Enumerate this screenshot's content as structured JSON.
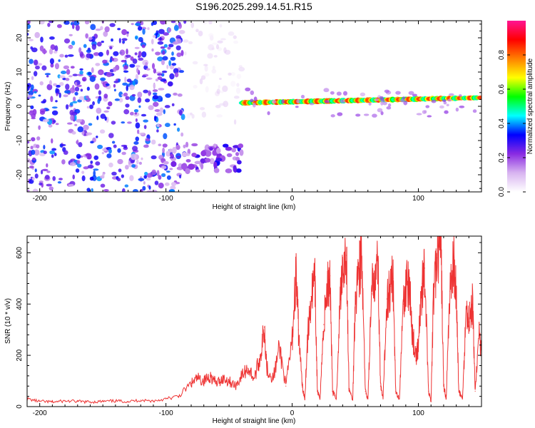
{
  "title": "S196.2025.299.14.51.R15",
  "chart_data": [
    {
      "type": "heatmap",
      "name": "spectrogram",
      "xlabel": "Height of straight line (km)",
      "ylabel": "Frequency (Hz)",
      "xlim": [
        -210,
        150
      ],
      "ylim": [
        -25,
        25
      ],
      "xticks": [
        -200,
        -100,
        0,
        100
      ],
      "xtick_labels": [
        "-200",
        "-100",
        "0",
        "100"
      ],
      "yticks": [
        20,
        10,
        0,
        -10,
        -20
      ],
      "ytick_labels": [
        "20",
        "10",
        "0",
        "-10",
        "-20"
      ],
      "colorbar": {
        "label": "Normalized spectral amplitude",
        "range": [
          0,
          1
        ],
        "ticks": [
          0.0,
          0.2,
          0.4,
          0.6,
          0.8
        ],
        "tick_labels": [
          "0.0",
          "0.2",
          "0.4",
          "0.6",
          "0.8"
        ],
        "colors": [
          "#ffffff",
          "#d8b4f0",
          "#8a2be2",
          "#0000ff",
          "#00ffff",
          "#00ff00",
          "#ffff00",
          "#ff8000",
          "#ff0000",
          "#ff1493"
        ]
      },
      "features": [
        {
          "label": "noise",
          "x_range": [
            -210,
            -85
          ],
          "freq_range": [
            -25,
            25
          ],
          "level": 0.35
        },
        {
          "label": "noise-sparse",
          "x_range": [
            -85,
            -40
          ],
          "freq_range": [
            -5,
            25
          ],
          "level": 0.08
        },
        {
          "label": "low-band",
          "x_range": [
            -100,
            -40
          ],
          "freq_center": -15,
          "freq_width": 4,
          "level": 0.25
        },
        {
          "label": "carrier",
          "x_range": [
            -40,
            150
          ],
          "freq_start": 1.0,
          "freq_end": 2.5,
          "level": 0.85
        }
      ]
    },
    {
      "type": "line",
      "name": "snr",
      "xlabel": "Height of straight line (km)",
      "ylabel": "SNR (10 * v/v)",
      "xlim": [
        -210,
        150
      ],
      "ylim": [
        0,
        665
      ],
      "xticks": [
        -200,
        -100,
        0,
        100
      ],
      "xtick_labels": [
        "-200",
        "-100",
        "0",
        "100"
      ],
      "yticks": [
        0,
        200,
        400,
        600
      ],
      "ytick_labels": [
        "0",
        "200",
        "400",
        "600"
      ],
      "color": "#ee3333",
      "x": [
        -210,
        -200,
        -190,
        -180,
        -170,
        -160,
        -150,
        -140,
        -130,
        -120,
        -110,
        -100,
        -90,
        -80,
        -75,
        -70,
        -65,
        -60,
        -55,
        -50,
        -45,
        -40,
        -35,
        -30,
        -25,
        -22,
        -20,
        -15,
        -10,
        -5,
        0,
        3,
        5,
        8,
        10,
        12,
        15,
        18,
        20,
        22,
        25,
        28,
        30,
        32,
        35,
        38,
        40,
        43,
        45,
        48,
        50,
        53,
        55,
        58,
        60,
        63,
        65,
        68,
        70,
        72,
        75,
        78,
        80,
        82,
        85,
        88,
        90,
        93,
        95,
        98,
        100,
        103,
        105,
        108,
        110,
        112,
        115,
        118,
        120,
        122,
        125,
        128,
        130,
        132,
        135,
        138,
        140,
        143,
        145,
        148,
        150
      ],
      "y": [
        30,
        20,
        18,
        22,
        20,
        18,
        20,
        22,
        20,
        25,
        22,
        30,
        40,
        90,
        110,
        100,
        120,
        90,
        110,
        100,
        80,
        120,
        150,
        110,
        200,
        310,
        150,
        110,
        230,
        80,
        260,
        520,
        300,
        80,
        30,
        250,
        430,
        480,
        60,
        30,
        320,
        470,
        510,
        60,
        30,
        420,
        560,
        590,
        70,
        25,
        430,
        540,
        580,
        60,
        30,
        440,
        520,
        560,
        80,
        30,
        420,
        470,
        500,
        60,
        30,
        400,
        480,
        460,
        300,
        180,
        250,
        480,
        540,
        60,
        20,
        440,
        580,
        610,
        80,
        30,
        450,
        560,
        460,
        60,
        30,
        380,
        330,
        400,
        60,
        280,
        220
      ]
    }
  ]
}
